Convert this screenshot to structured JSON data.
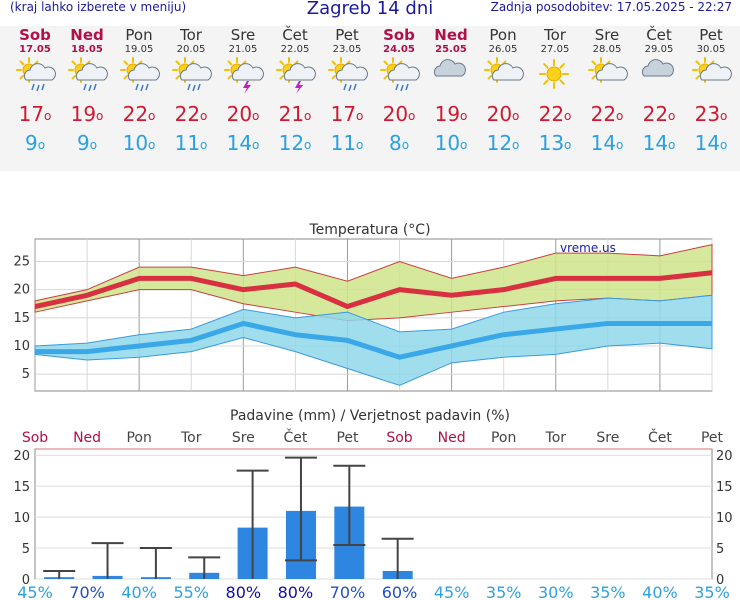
{
  "header": {
    "menu_hint": "(kraj lahko izberete v meniju)",
    "title": "Zagreb 14 dni",
    "updated": "Zadnja posodobitev: 17.05.2025 - 22:27"
  },
  "days": [
    {
      "name": "Sob",
      "date": "17.05",
      "weekend": true,
      "icon": "sun-cloud-rain-icon",
      "tmax": "17",
      "tmin": "9"
    },
    {
      "name": "Ned",
      "date": "18.05",
      "weekend": true,
      "icon": "sun-cloud-rain-icon",
      "tmax": "19",
      "tmin": "9"
    },
    {
      "name": "Pon",
      "date": "19.05",
      "weekend": false,
      "icon": "sun-cloud-rain-icon",
      "tmax": "22",
      "tmin": "10"
    },
    {
      "name": "Tor",
      "date": "20.05",
      "weekend": false,
      "icon": "sun-cloud-rain-icon",
      "tmax": "22",
      "tmin": "11"
    },
    {
      "name": "Sre",
      "date": "21.05",
      "weekend": false,
      "icon": "sun-cloud-storm-icon",
      "tmax": "20",
      "tmin": "14"
    },
    {
      "name": "Čet",
      "date": "22.05",
      "weekend": false,
      "icon": "sun-cloud-storm-icon",
      "tmax": "21",
      "tmin": "12"
    },
    {
      "name": "Pet",
      "date": "23.05",
      "weekend": false,
      "icon": "sun-cloud-rain-icon",
      "tmax": "17",
      "tmin": "11"
    },
    {
      "name": "Sob",
      "date": "24.05",
      "weekend": true,
      "icon": "sun-cloud-rain-icon",
      "tmax": "20",
      "tmin": "8"
    },
    {
      "name": "Ned",
      "date": "25.05",
      "weekend": true,
      "icon": "cloud-icon",
      "tmax": "19",
      "tmin": "10"
    },
    {
      "name": "Pon",
      "date": "26.05",
      "weekend": false,
      "icon": "sun-cloud-icon",
      "tmax": "20",
      "tmin": "12"
    },
    {
      "name": "Tor",
      "date": "27.05",
      "weekend": false,
      "icon": "sun-icon",
      "tmax": "22",
      "tmin": "13"
    },
    {
      "name": "Sre",
      "date": "28.05",
      "weekend": false,
      "icon": "sun-cloud-icon",
      "tmax": "22",
      "tmin": "14"
    },
    {
      "name": "Čet",
      "date": "29.05",
      "weekend": false,
      "icon": "cloud-icon",
      "tmax": "22",
      "tmin": "14"
    },
    {
      "name": "Pet",
      "date": "30.05",
      "weekend": false,
      "icon": "sun-cloud-icon",
      "tmax": "23",
      "tmin": "14"
    }
  ],
  "chart_data": [
    {
      "type": "line",
      "title": "Temperatura (°C)",
      "watermark": "vreme.us",
      "x_index": [
        0,
        1,
        2,
        3,
        4,
        5,
        6,
        7,
        8,
        9,
        10,
        11,
        12,
        13
      ],
      "ylim": [
        2,
        29
      ],
      "yticks": [
        5,
        10,
        15,
        20,
        25
      ],
      "grid": true,
      "series": [
        {
          "role": "max",
          "color": "#d83040",
          "values": [
            17,
            19,
            22,
            22,
            20,
            21,
            17,
            20,
            19,
            20,
            22,
            22,
            22,
            23
          ]
        },
        {
          "role": "max_band_high",
          "color": "#c8e07a",
          "values": [
            18,
            20,
            24,
            24,
            22.5,
            24,
            21.5,
            25,
            22,
            24,
            26.5,
            26.5,
            26,
            28
          ]
        },
        {
          "role": "max_band_low",
          "color": "#c8e07a",
          "values": [
            16,
            18,
            20,
            20,
            17.5,
            16,
            14.5,
            15,
            16,
            17,
            18,
            18.5,
            18,
            19
          ]
        },
        {
          "role": "min",
          "color": "#3aa8e8",
          "values": [
            9,
            9,
            10,
            11,
            14,
            12,
            11,
            8,
            10,
            12,
            13,
            14,
            14,
            14
          ]
        },
        {
          "role": "min_band_high",
          "color": "#90d8ec",
          "values": [
            10,
            10.5,
            12,
            13,
            16.5,
            15,
            16,
            12.5,
            13,
            16,
            17.5,
            18.5,
            18,
            19
          ]
        },
        {
          "role": "min_band_low",
          "color": "#90d8ec",
          "values": [
            8.5,
            7.5,
            8,
            9,
            11.5,
            9,
            6,
            3,
            7,
            8,
            8.5,
            10,
            10.5,
            9.5
          ]
        }
      ]
    },
    {
      "type": "bar",
      "title": "Padavine (mm) / Verjetnost padavin (%)",
      "x_index": [
        0,
        1,
        2,
        3,
        4,
        5,
        6,
        7,
        8,
        9,
        10,
        11,
        12,
        13
      ],
      "ylim": [
        0,
        21
      ],
      "yticks": [
        0,
        5,
        10,
        15,
        20
      ],
      "grid": true,
      "bar_color": "#2e86e0",
      "values": [
        0.3,
        0.5,
        0.3,
        1.0,
        8.3,
        11.0,
        11.7,
        1.3,
        0,
        0,
        0,
        0,
        0,
        0
      ],
      "error_low": [
        0,
        0,
        0,
        0,
        0,
        3,
        5.5,
        0,
        0,
        0,
        0,
        0,
        0,
        0
      ],
      "error_high": [
        1.3,
        5.8,
        5.0,
        3.5,
        17.5,
        19.6,
        18.3,
        6.5,
        0,
        0,
        0,
        0,
        0,
        0
      ],
      "probability": [
        "45%",
        "70%",
        "40%",
        "55%",
        "80%",
        "80%",
        "70%",
        "60%",
        "45%",
        "35%",
        "30%",
        "35%",
        "40%",
        "35%"
      ],
      "day_labels": [
        "Sob",
        "Ned",
        "Pon",
        "Tor",
        "Sre",
        "Čet",
        "Pet",
        "Sob",
        "Ned",
        "Pon",
        "Tor",
        "Sre",
        "Čet",
        "Pet"
      ]
    }
  ]
}
